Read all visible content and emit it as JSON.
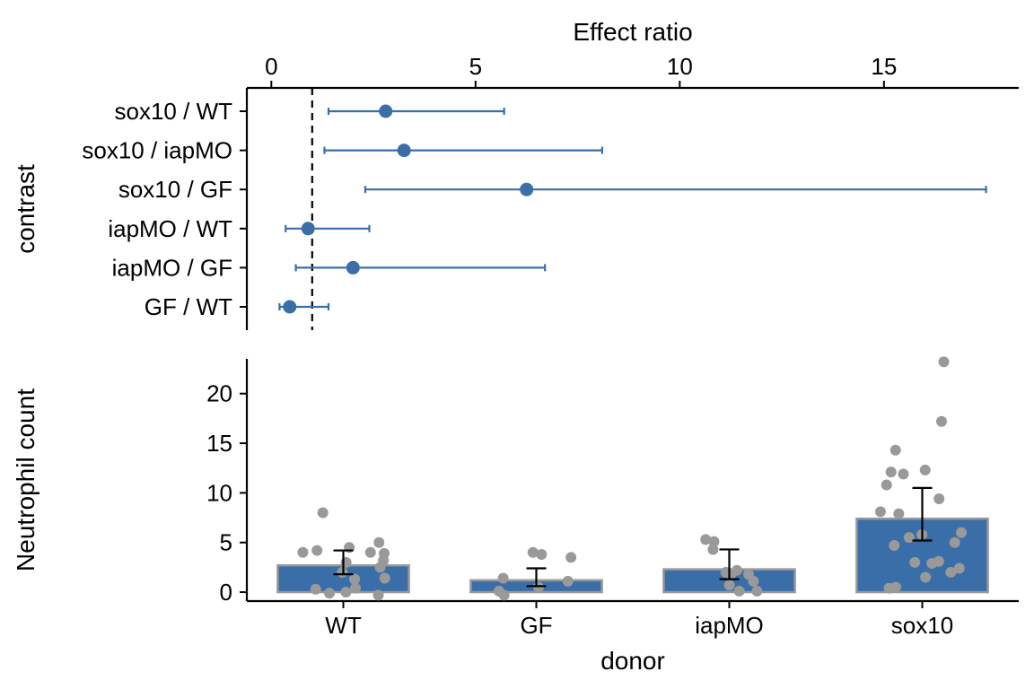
{
  "chart_data": [
    {
      "type": "forest",
      "xlabel": "Effect ratio",
      "ylabel": "contrast",
      "xlim": [
        -0.6,
        18.3
      ],
      "xticks": [
        0,
        5,
        10,
        15
      ],
      "xaxis_position": "top",
      "reference_line": 1,
      "point_color": "#3A6EA8",
      "contrasts": [
        {
          "label": "sox10 / WT",
          "estimate": 2.8,
          "lower": 1.4,
          "upper": 5.7
        },
        {
          "label": "sox10 / iapMO",
          "estimate": 3.25,
          "lower": 1.3,
          "upper": 8.1
        },
        {
          "label": "sox10 / GF",
          "estimate": 6.25,
          "lower": 2.3,
          "upper": 17.5
        },
        {
          "label": "iapMO / WT",
          "estimate": 0.9,
          "lower": 0.35,
          "upper": 2.4
        },
        {
          "label": "iapMO / GF",
          "estimate": 2.0,
          "lower": 0.6,
          "upper": 6.7
        },
        {
          "label": "GF / WT",
          "estimate": 0.45,
          "lower": 0.2,
          "upper": 1.4
        }
      ]
    },
    {
      "type": "bar",
      "xlabel": "donor",
      "ylabel": "Neutrophil count",
      "ylim": [
        -0.9,
        23.5
      ],
      "yticks": [
        0,
        5,
        10,
        15,
        20
      ],
      "categories": [
        "WT",
        "GF",
        "iapMO",
        "sox10"
      ],
      "values": [
        2.7,
        1.2,
        2.3,
        7.4
      ],
      "error_low": [
        1.8,
        0.6,
        1.3,
        5.2
      ],
      "error_high": [
        4.2,
        2.4,
        4.3,
        10.5
      ],
      "bar_color": "#3A6EA8",
      "bar_edge_color": "#999999",
      "point_color": "#999999",
      "points": [
        [
          8.0,
          5.0,
          4.5,
          4.2,
          4.0,
          4.0,
          3.9,
          3.2,
          3.0,
          2.5,
          2.0,
          1.4,
          1.3,
          0.4,
          0.3,
          0.0,
          -0.1,
          -0.3
        ],
        [
          4.0,
          3.8,
          3.5,
          1.4,
          1.1,
          0.5,
          0.1,
          -0.3
        ],
        [
          5.3,
          5.1,
          4.3,
          2.2,
          2.0,
          1.8,
          1.8,
          1.1,
          0.7,
          0.1,
          0.1
        ],
        [
          23.2,
          17.2,
          14.3,
          12.3,
          12.1,
          11.9,
          10.8,
          9.4,
          8.1,
          7.9,
          6.0,
          5.8,
          5.5,
          5.0,
          4.7,
          3.1,
          3.0,
          2.9,
          2.4,
          2.0,
          1.5,
          0.5,
          0.4
        ]
      ]
    }
  ]
}
